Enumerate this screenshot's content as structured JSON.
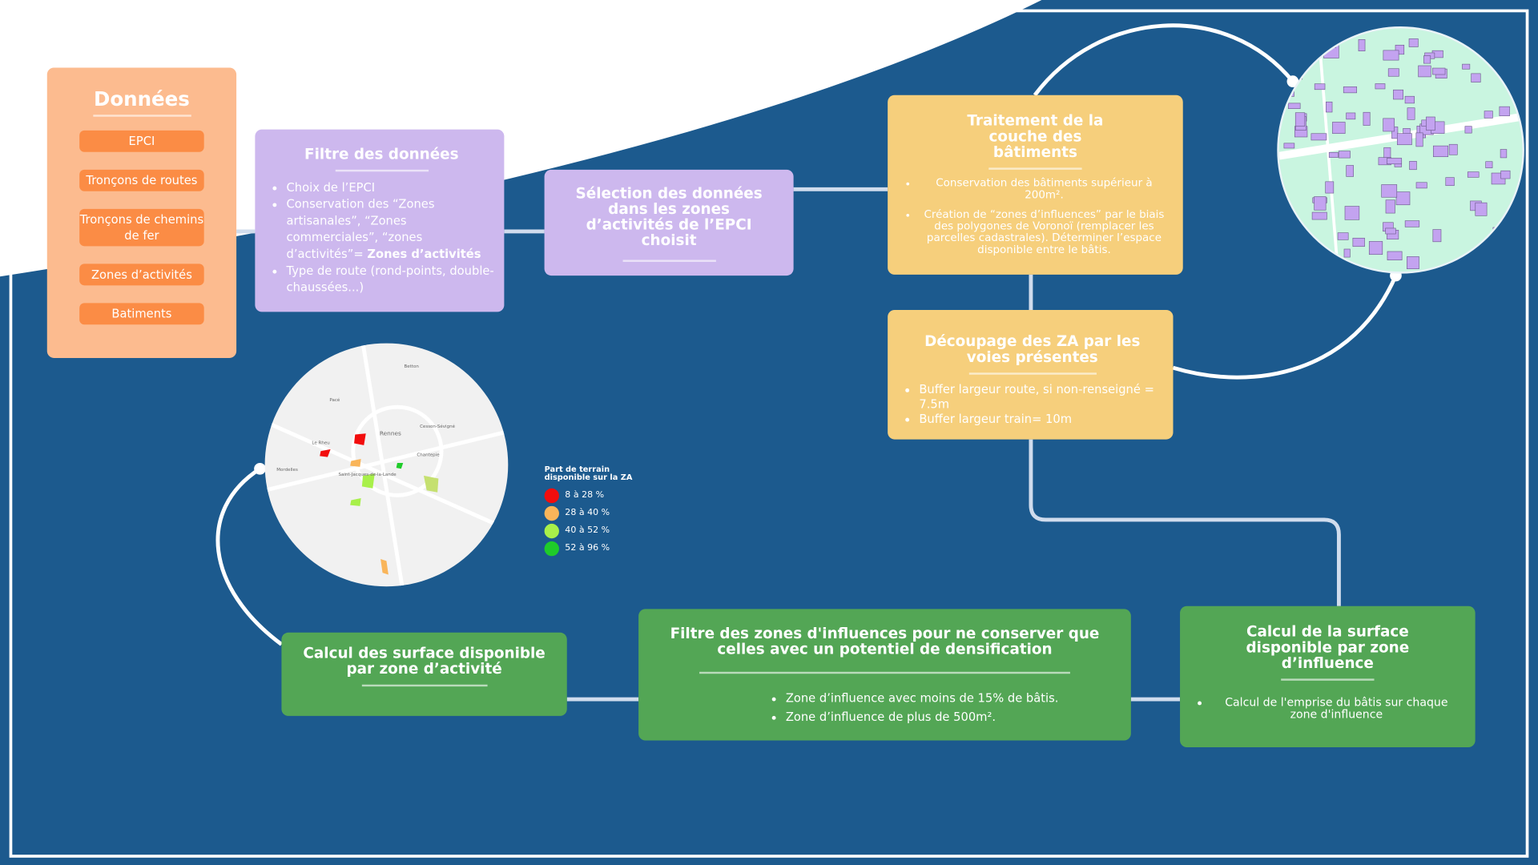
{
  "colors": {
    "background": "#1c5a8e",
    "donnees": "#fcbb8f",
    "donnees_button": "#fb8c45",
    "purple": "#cdb8ee",
    "yellow": "#f6cf7c",
    "green": "#53a655",
    "connector": "#d0dced"
  },
  "donnees": {
    "title": "Données",
    "items": [
      "EPCI",
      "Tronçons de routes",
      "Tronçons de chemins de fer",
      "Zones d’activités",
      "Batiments"
    ]
  },
  "filtre": {
    "title": "Filtre des données",
    "bullets": [
      "Choix de l’EPCI",
      "Conservation des “Zones artisanales”, “Zones commerciales”, “zones d’activités”= ",
      "Type de route (rond-points, double-chaussées...)"
    ],
    "bold": "Zones d’activités"
  },
  "selection": {
    "title": "Sélection des données dans les zones d’activités de l’EPCI choisit"
  },
  "traitement": {
    "title": "Traitement de la couche des bâtiments",
    "bullets": [
      "Conservation des bâtiments supérieur à 200m².",
      "Création de “zones d’influences” par le biais des polygones de Voronoï (remplacer les parcelles cadastrales). Déterminer l’espace disponible entre le bâtis."
    ]
  },
  "decoupage": {
    "title": "Découpage des ZA par les voies présentes",
    "bullets": [
      "Buffer largeur route, si non-renseigné = 7.5m",
      "Buffer largeur train= 10m"
    ]
  },
  "calcul_zone": {
    "title": "Calcul de la surface disponible par zone d’influence",
    "bullets": [
      "Calcul de l'emprise du bâtis sur chaque zone d'influence"
    ]
  },
  "filtre_zones": {
    "title": "Filtre des zones d'influences pour ne conserver que celles avec un potentiel de densification",
    "bullets": [
      "Zone d’influence avec moins de 15% de bâtis.",
      "Zone d’influence de plus de 500m²."
    ]
  },
  "calcul_za": {
    "title": "Calcul des surface disponible par zone d’activité"
  },
  "map": {
    "places": [
      "Betton",
      "Pacé",
      "Le Rheu",
      "Rennes",
      "Cesson-Sévigné",
      "Chantepie",
      "Saint-Jacques-de-la-Lande",
      "Mordelles"
    ]
  },
  "legend": {
    "title": "Part de terrain disponible sur la ZA",
    "items": [
      {
        "label": "8 à 28 %",
        "color": "#f20d0d"
      },
      {
        "label": "28 à 40 %",
        "color": "#f9b55a"
      },
      {
        "label": "40 à 52 %",
        "color": "#a8f04a"
      },
      {
        "label": "52 à 96 %",
        "color": "#1fcc2a"
      }
    ]
  }
}
